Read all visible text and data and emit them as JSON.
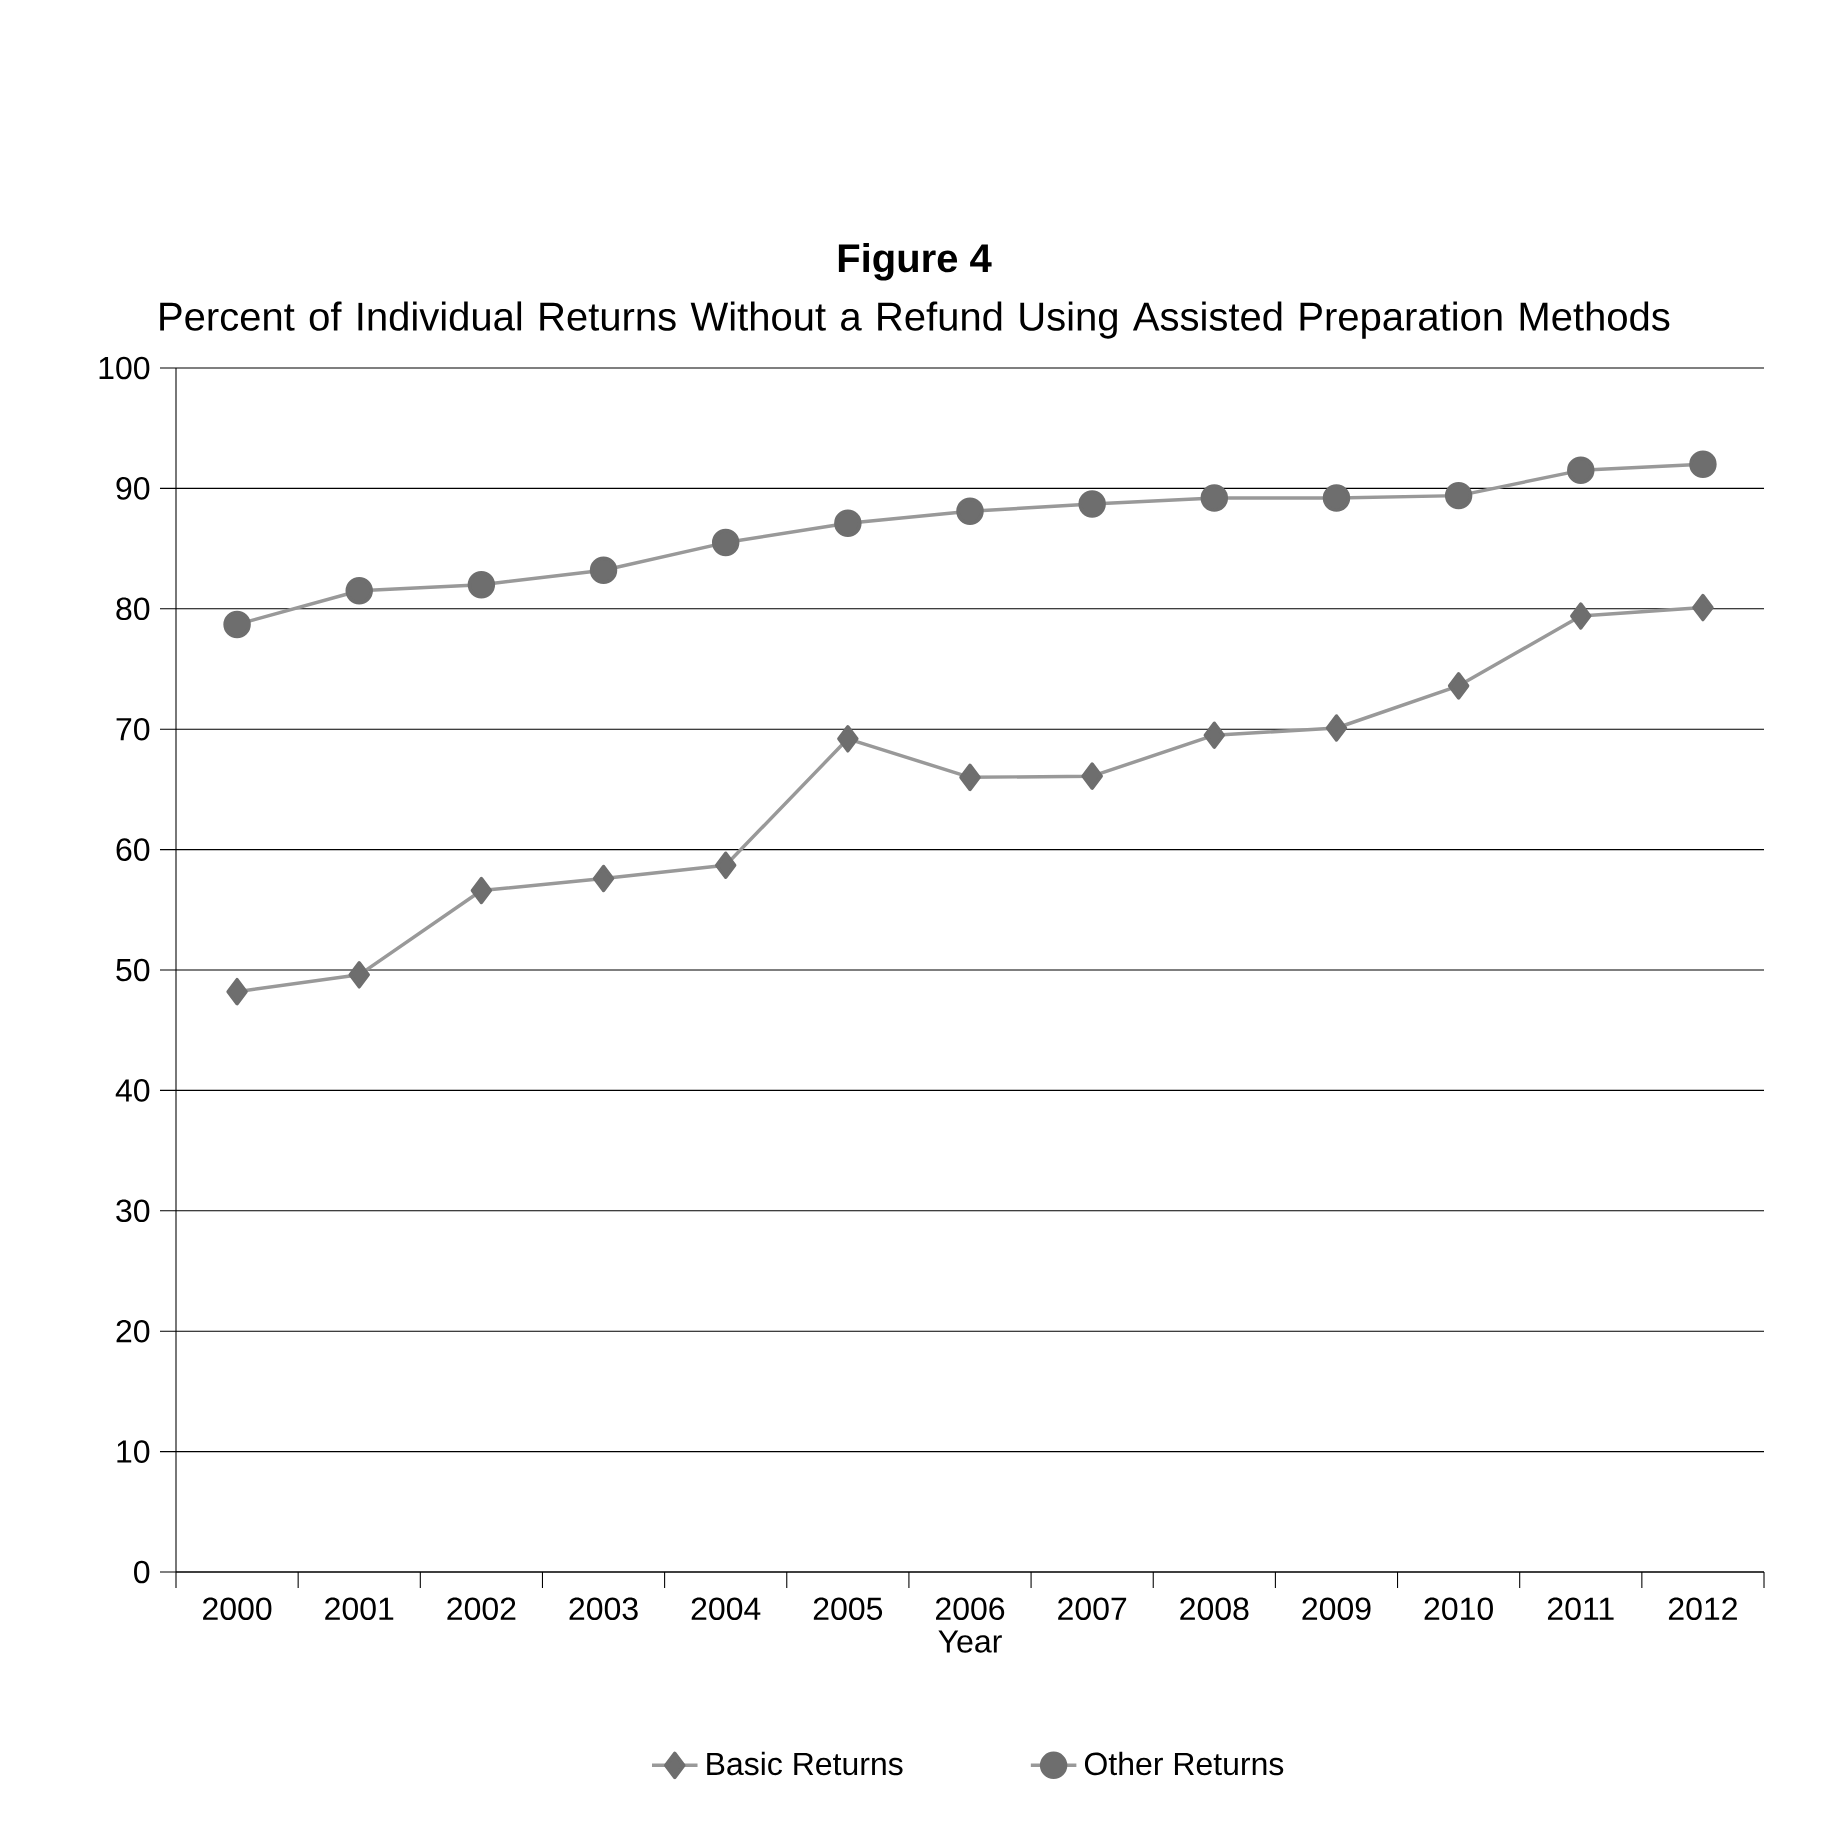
{
  "chart_data": {
    "type": "line",
    "title": "Figure 4",
    "subtitle": "Percent of Individual Returns Without a Refund Using Assisted Preparation Methods",
    "xlabel": "Year",
    "categories": [
      "2000",
      "2001",
      "2002",
      "2003",
      "2004",
      "2005",
      "2006",
      "2007",
      "2008",
      "2009",
      "2010",
      "2011",
      "2012"
    ],
    "series": [
      {
        "name": "Basic Returns",
        "color": "#6e6e6e",
        "marker": "diamond",
        "values": [
          48.2,
          49.6,
          56.6,
          57.6,
          58.7,
          69.2,
          66.0,
          66.1,
          69.5,
          70.1,
          73.6,
          79.4,
          80.1
        ]
      },
      {
        "name": "Other Returns",
        "color": "#6e6e6e",
        "marker": "circle",
        "values": [
          78.7,
          81.5,
          82.0,
          83.2,
          85.5,
          87.1,
          88.1,
          88.7,
          89.2,
          89.2,
          89.4,
          91.5,
          92.0
        ]
      }
    ],
    "ylim": [
      0,
      100
    ],
    "yticks": [
      0,
      10,
      20,
      30,
      40,
      50,
      60,
      70,
      80,
      90,
      100
    ],
    "grid": "y",
    "legend": "bottom",
    "line_style": "solid"
  }
}
